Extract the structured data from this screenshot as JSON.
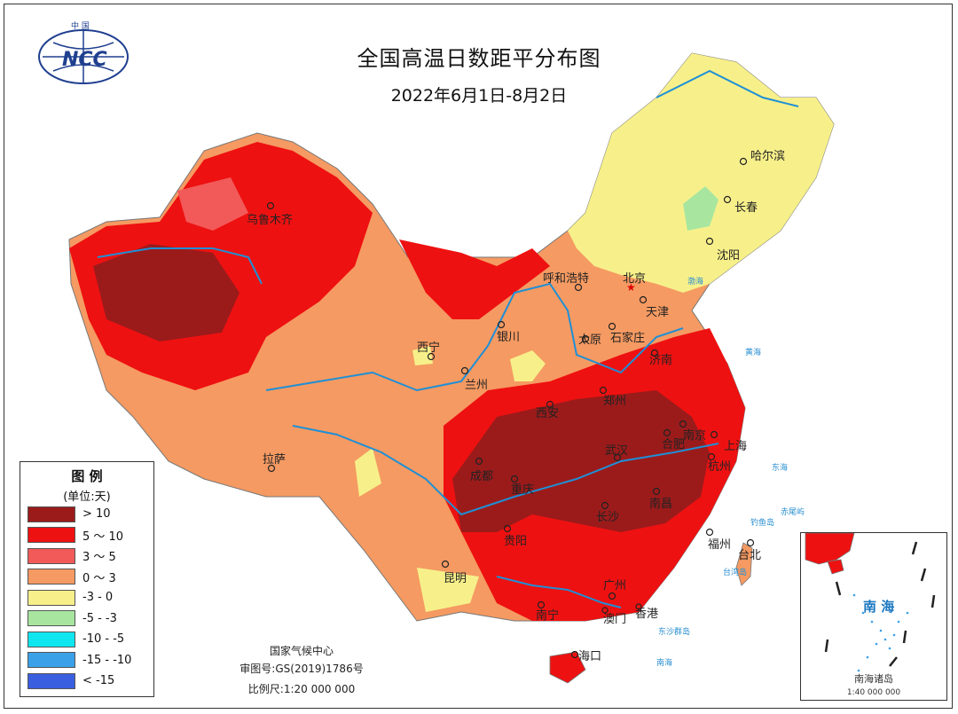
{
  "title": "全国高温日数距平分布图",
  "subtitle": "2022年6月1日-8月2日",
  "logo": {
    "top_text": "中 国",
    "text": "NCC"
  },
  "legend": {
    "title": "图  例",
    "unit": "(单位:天)",
    "items": [
      {
        "label": "> 10",
        "color": "#9b1b1b"
      },
      {
        "label": "5 ～ 10",
        "color": "#ee1111"
      },
      {
        "label": "3 ～ 5",
        "color": "#f25a5a"
      },
      {
        "label": "0 ～ 3",
        "color": "#f59a62"
      },
      {
        "label": "-3 - 0",
        "color": "#f7f08a"
      },
      {
        "label": "-5 - -3",
        "color": "#a8e6a0"
      },
      {
        "label": "-10 - -5",
        "color": "#10e6f0"
      },
      {
        "label": "-15 - -10",
        "color": "#3aa0e8"
      },
      {
        "label": "< -15",
        "color": "#3a5ee0"
      }
    ]
  },
  "credits": {
    "org": "国家气候中心",
    "approval": "审图号:GS(2019)1786号",
    "scale": "比例尺:1:20 000 000"
  },
  "inset": {
    "sea_label": "南 海",
    "title": "南海诸岛",
    "scale": "1:40 000 000"
  },
  "cities": {
    "urumqi": "乌鲁木齐",
    "harbin": "哈尔滨",
    "changchun": "长春",
    "shenyang": "沈阳",
    "hohhot": "呼和浩特",
    "beijing": "北京",
    "tianjin": "天津",
    "shijiazhuang": "石家庄",
    "taiyuan": "太原",
    "yinchuan": "银川",
    "xining": "西宁",
    "lanzhou": "兰州",
    "jinan": "济南",
    "zhengzhou": "郑州",
    "xian": "西安",
    "nanjing": "南京",
    "hefei": "合肥",
    "shanghai": "上海",
    "wuhan": "武汉",
    "hangzhou": "杭州",
    "chengdu": "成都",
    "chongqing": "重庆",
    "lhasa": "拉萨",
    "changsha": "长沙",
    "nanchang": "南昌",
    "guiyang": "贵阳",
    "fuzhou": "福州",
    "taibei": "台北",
    "kunming": "昆明",
    "guangzhou": "广州",
    "nanning": "南宁",
    "macau": "澳门",
    "hongkong": "香港",
    "haikou": "海口"
  },
  "sea_labels": {
    "bohai": "渤海",
    "yellow": "黄海",
    "east": "东海",
    "south": "南海",
    "diaoyu": "钓鱼岛",
    "chiwei": "赤尾屿",
    "dongsha": "东沙群岛",
    "taiwan_island": "台湾岛"
  }
}
